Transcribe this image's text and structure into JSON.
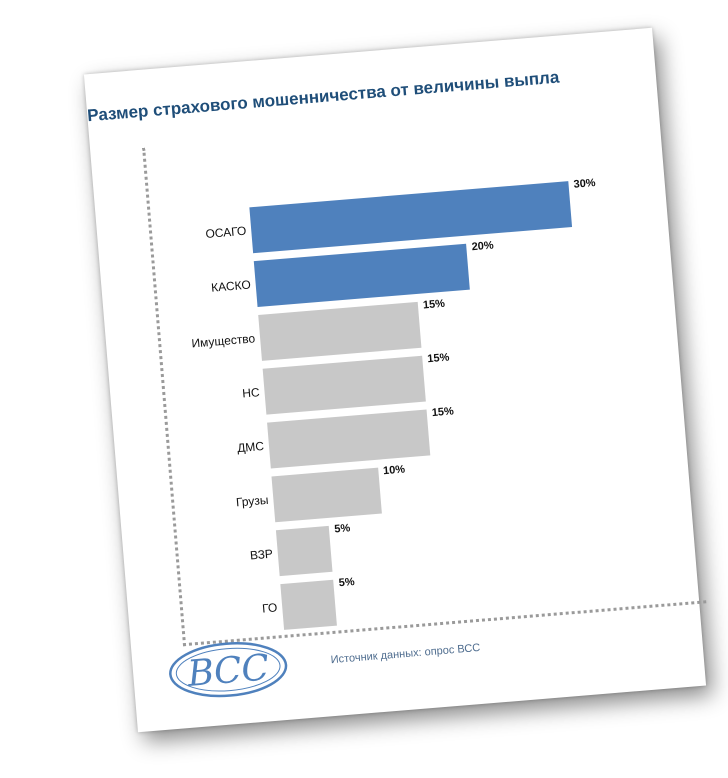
{
  "chart_data": {
    "type": "bar",
    "orientation": "horizontal",
    "title": "Размер страхового мошенничества от величины выпла",
    "categories": [
      "ОСАГО",
      "КАСКО",
      "Имущество",
      "НС",
      "ДМС",
      "Грузы",
      "ВЗР",
      "ГО"
    ],
    "values": [
      30,
      20,
      15,
      15,
      15,
      10,
      5,
      5
    ],
    "value_labels": [
      "30%",
      "20%",
      "15%",
      "15%",
      "15%",
      "10%",
      "5%",
      "5%"
    ],
    "bar_colors": [
      "#4f81bd",
      "#4f81bd",
      "#c8c8c8",
      "#c8c8c8",
      "#c8c8c8",
      "#c8c8c8",
      "#c8c8c8",
      "#c8c8c8"
    ],
    "xlabel": "",
    "ylabel": "",
    "xlim": [
      0,
      30
    ],
    "grid": false,
    "legend": "none"
  },
  "source": "Источник данных: опрос ВСС",
  "logo": {
    "text": "ВСС",
    "color": "#4f81bd"
  }
}
